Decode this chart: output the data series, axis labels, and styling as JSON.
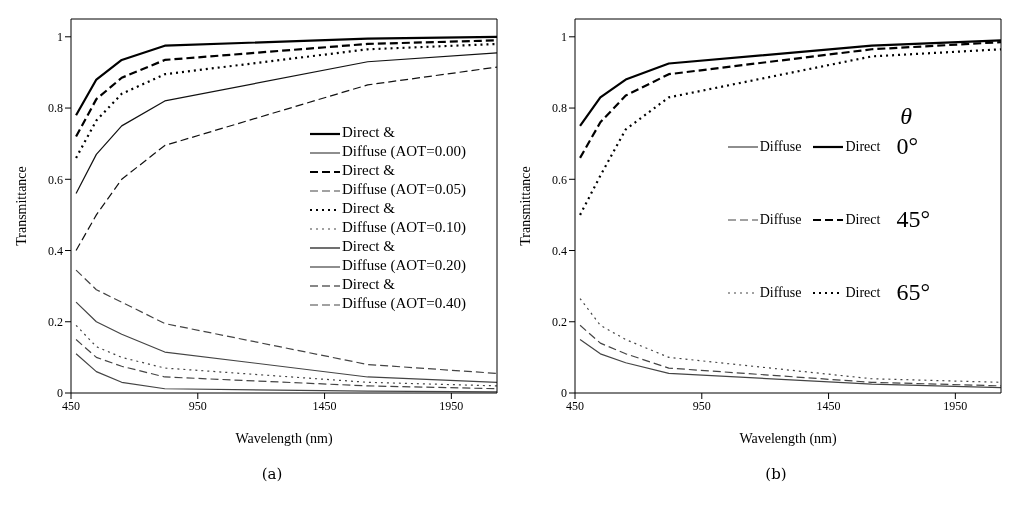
{
  "chart_data": [
    {
      "type": "line",
      "xlabel": "Wavelength (nm)",
      "ylabel": "Transmittance",
      "x": [
        470,
        550,
        650,
        820,
        1620,
        2130
      ],
      "xlim": [
        450,
        2130
      ],
      "xticks": [
        450,
        950,
        1450,
        1950
      ],
      "ylim": [
        0,
        1.05
      ],
      "yticks": [
        0,
        0.2,
        0.4,
        0.6,
        0.8,
        1
      ],
      "legend": "right",
      "annotations": [
        "(a)"
      ],
      "series": [
        {
          "name": "Direct &",
          "color": "#000000",
          "line_style": "solid",
          "values": [
            0.78,
            0.88,
            0.935,
            0.975,
            0.995,
            1.0
          ]
        },
        {
          "name": "Diffuse (AOT=0.00)",
          "color": "#444444",
          "line_style": "solid",
          "values": [
            0.11,
            0.06,
            0.03,
            0.012,
            0.005,
            0.003
          ]
        },
        {
          "name": "Direct &",
          "color": "#000000",
          "line_style": "dashed",
          "values": [
            0.72,
            0.825,
            0.885,
            0.935,
            0.98,
            0.99
          ]
        },
        {
          "name": "Diffuse (AOT=0.05)",
          "color": "#444444",
          "line_style": "dashed",
          "values": [
            0.15,
            0.1,
            0.075,
            0.045,
            0.02,
            0.012
          ]
        },
        {
          "name": "Direct &",
          "color": "#000000",
          "line_style": "dotted",
          "values": [
            0.66,
            0.765,
            0.84,
            0.895,
            0.965,
            0.98
          ]
        },
        {
          "name": "Diffuse (AOT=0.10)",
          "color": "#444444",
          "line_style": "dotted",
          "values": [
            0.19,
            0.13,
            0.1,
            0.07,
            0.03,
            0.02
          ]
        },
        {
          "name": "Direct &",
          "color": "#111111",
          "line_style": "solid",
          "values": [
            0.56,
            0.67,
            0.75,
            0.82,
            0.93,
            0.955
          ]
        },
        {
          "name": "Diffuse (AOT=0.20)",
          "color": "#444444",
          "line_style": "solid",
          "values": [
            0.255,
            0.2,
            0.165,
            0.115,
            0.045,
            0.03
          ]
        },
        {
          "name": "Direct &",
          "color": "#111111",
          "line_style": "dashed",
          "values": [
            0.4,
            0.5,
            0.6,
            0.695,
            0.865,
            0.915
          ]
        },
        {
          "name": "Diffuse (AOT=0.40)",
          "color": "#444444",
          "line_style": "dashed",
          "values": [
            0.345,
            0.29,
            0.255,
            0.195,
            0.08,
            0.055
          ]
        }
      ]
    },
    {
      "type": "line",
      "xlabel": "Wavelength (nm)",
      "ylabel": "Transmittance",
      "x": [
        470,
        550,
        650,
        820,
        1620,
        2130
      ],
      "xlim": [
        450,
        2130
      ],
      "xticks": [
        450,
        950,
        1450,
        1950
      ],
      "ylim": [
        0,
        1.05
      ],
      "yticks": [
        0,
        0.2,
        0.4,
        0.6,
        0.8,
        1
      ],
      "legend": "right",
      "legend_title": "θ",
      "annotations": [
        "0°",
        "45°",
        "65°",
        "(b)"
      ],
      "series": [
        {
          "name": "Diffuse",
          "color": "#444444",
          "line_style": "solid",
          "values": [
            0.15,
            0.11,
            0.085,
            0.055,
            0.025,
            0.015
          ]
        },
        {
          "name": "Direct",
          "color": "#000000",
          "line_style": "solid",
          "values": [
            0.75,
            0.83,
            0.88,
            0.925,
            0.975,
            0.99
          ]
        },
        {
          "name": "Diffuse",
          "color": "#444444",
          "line_style": "dashed",
          "values": [
            0.19,
            0.14,
            0.11,
            0.07,
            0.03,
            0.02
          ]
        },
        {
          "name": "Direct",
          "color": "#000000",
          "line_style": "dashed",
          "values": [
            0.66,
            0.76,
            0.835,
            0.895,
            0.965,
            0.985
          ]
        },
        {
          "name": "Diffuse",
          "color": "#444444",
          "line_style": "dotted",
          "values": [
            0.265,
            0.19,
            0.15,
            0.1,
            0.04,
            0.03
          ]
        },
        {
          "name": "Direct",
          "color": "#000000",
          "line_style": "dotted",
          "values": [
            0.5,
            0.61,
            0.74,
            0.83,
            0.945,
            0.965
          ]
        }
      ]
    }
  ]
}
